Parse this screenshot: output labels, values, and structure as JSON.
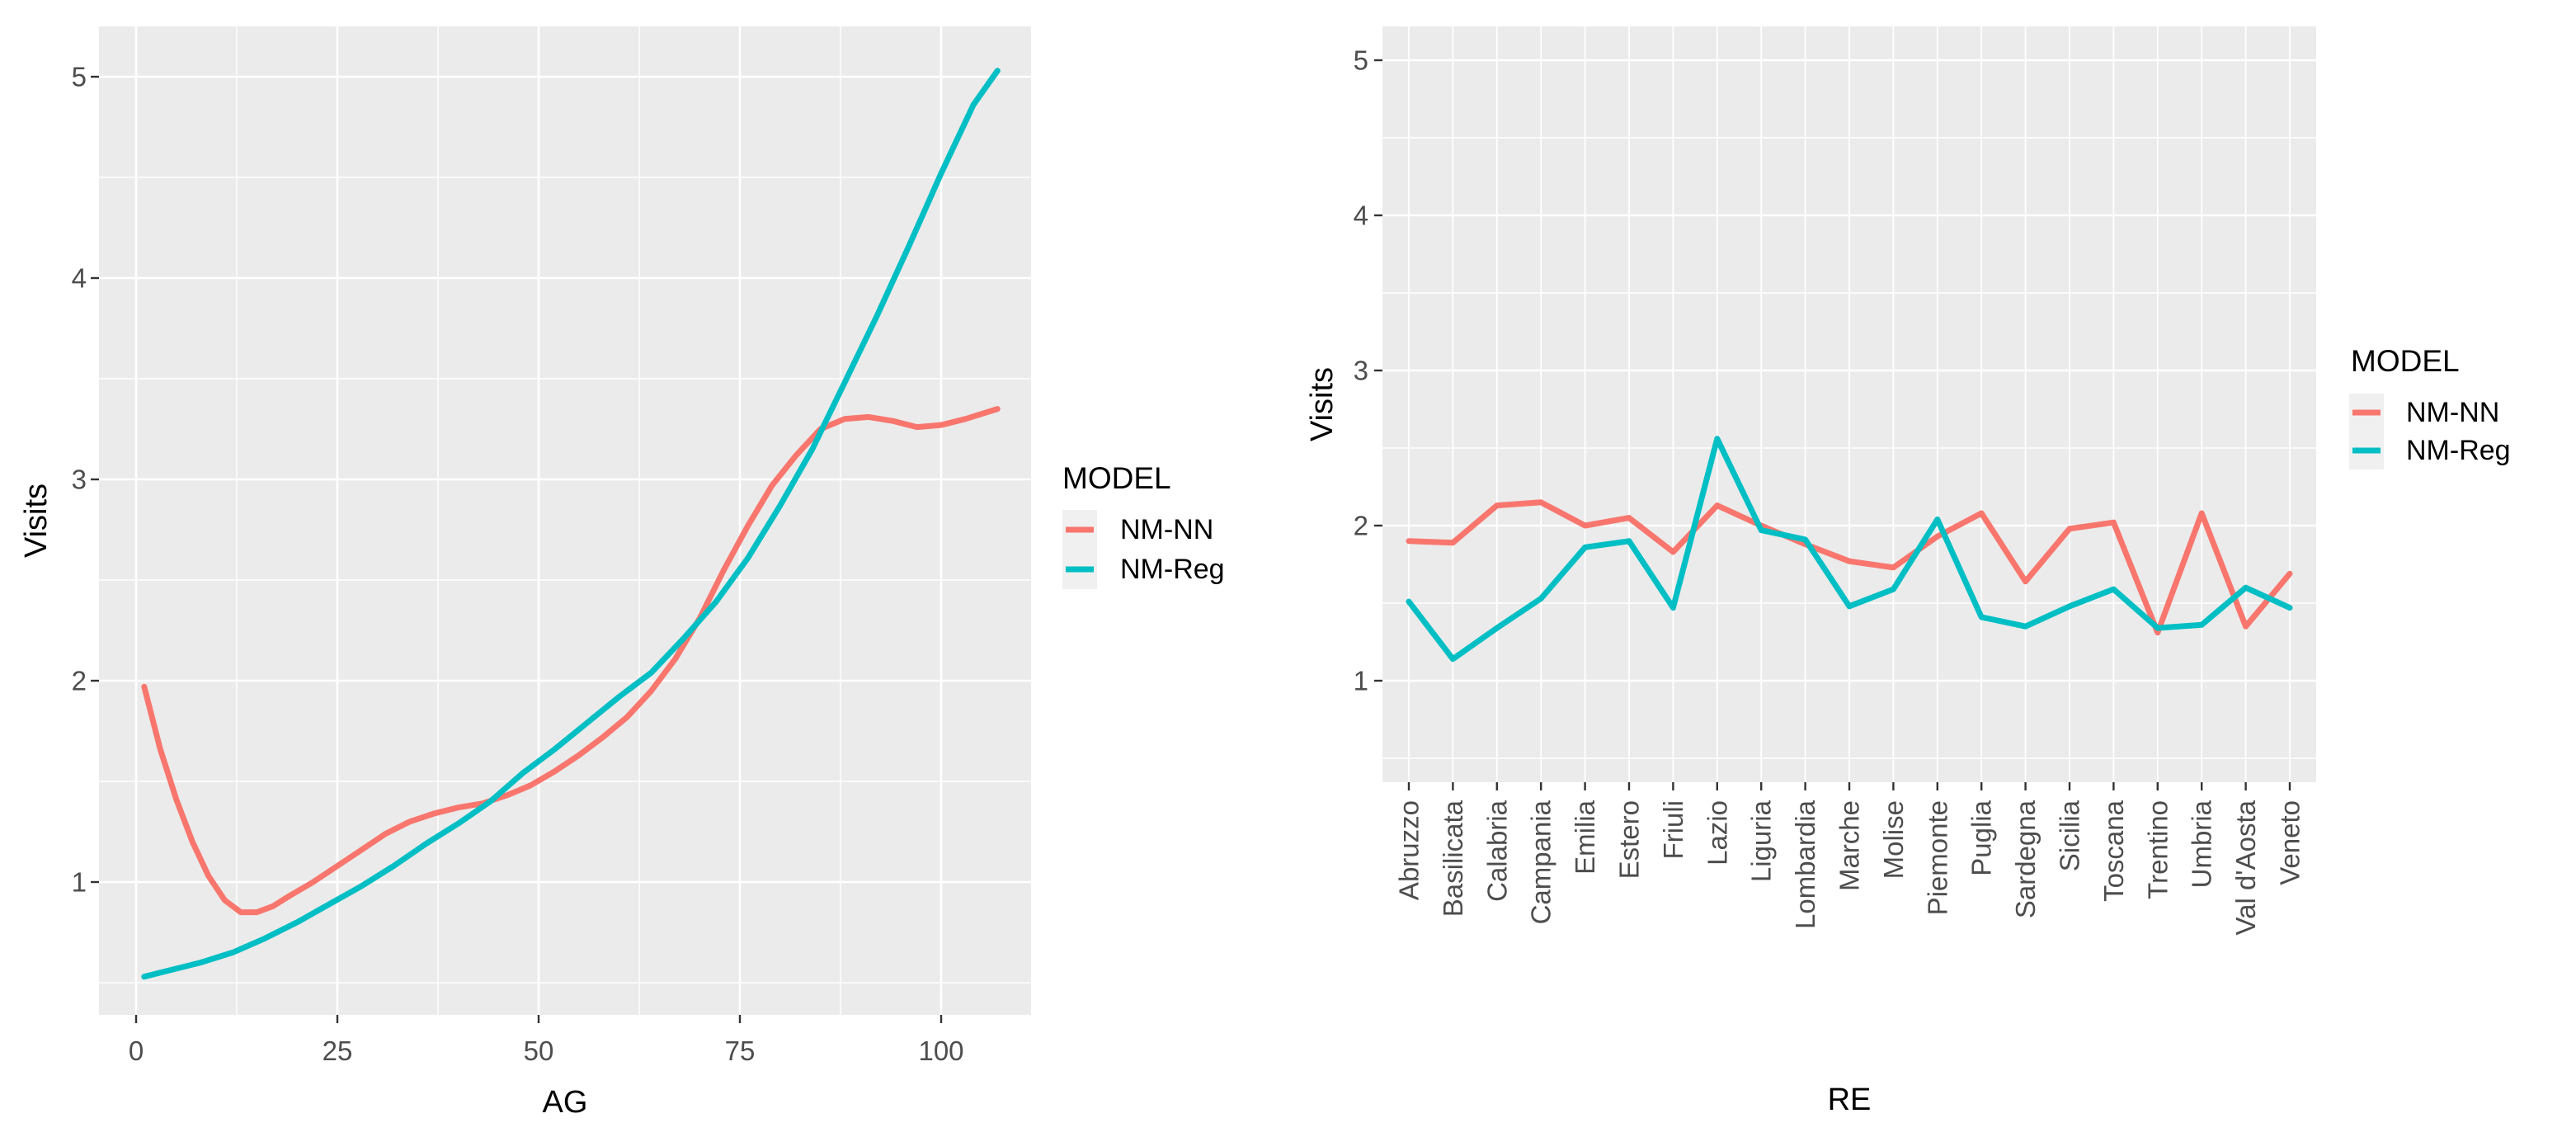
{
  "figure": {
    "background": "#FFFFFF"
  },
  "theme": {
    "panel_bg": "#EBEBEB",
    "grid_color": "#FFFFFF",
    "axis_text_color": "#4D4D4D",
    "axis_title_color": "#000000",
    "tick_mark_color": "#333333",
    "legend_key_bg": "#F0F0F0",
    "nm_nn_color": "#F8766D",
    "nm_reg_color": "#00BFC4"
  },
  "chart_data": [
    {
      "id": "visits-by-age",
      "type": "line",
      "title": "",
      "xlabel": "AG",
      "ylabel": "Visits",
      "x_ticks": [
        0,
        25,
        50,
        75,
        100
      ],
      "x_minor_ticks": [
        12.5,
        37.5,
        62.5,
        87.5
      ],
      "y_ticks": [
        1,
        2,
        3,
        4,
        5
      ],
      "y_minor_ticks": [
        0.5,
        1.5,
        2.5,
        3.5,
        4.5
      ],
      "xlim": [
        -4.6,
        111.2
      ],
      "ylim": [
        0.34,
        5.25
      ],
      "grid": true,
      "legend_title": "MODEL",
      "legend_position": "right",
      "series": [
        {
          "name": "NM-NN",
          "color": "#F8766D",
          "points": [
            [
              1,
              1.97
            ],
            [
              3,
              1.66
            ],
            [
              5,
              1.41
            ],
            [
              7,
              1.2
            ],
            [
              9,
              1.03
            ],
            [
              11,
              0.91
            ],
            [
              13,
              0.85
            ],
            [
              15,
              0.85
            ],
            [
              17,
              0.88
            ],
            [
              19,
              0.93
            ],
            [
              22,
              1.0
            ],
            [
              25,
              1.08
            ],
            [
              28,
              1.16
            ],
            [
              31,
              1.24
            ],
            [
              34,
              1.3
            ],
            [
              37,
              1.34
            ],
            [
              40,
              1.37
            ],
            [
              43,
              1.39
            ],
            [
              46,
              1.43
            ],
            [
              49,
              1.48
            ],
            [
              52,
              1.55
            ],
            [
              55,
              1.63
            ],
            [
              58,
              1.72
            ],
            [
              61,
              1.82
            ],
            [
              64,
              1.95
            ],
            [
              67,
              2.11
            ],
            [
              70,
              2.31
            ],
            [
              73,
              2.55
            ],
            [
              76,
              2.77
            ],
            [
              79,
              2.97
            ],
            [
              82,
              3.12
            ],
            [
              85,
              3.25
            ],
            [
              88,
              3.3
            ],
            [
              91,
              3.31
            ],
            [
              94,
              3.29
            ],
            [
              97,
              3.26
            ],
            [
              100,
              3.27
            ],
            [
              103,
              3.3
            ],
            [
              107,
              3.35
            ]
          ]
        },
        {
          "name": "NM-Reg",
          "color": "#00BFC4",
          "points": [
            [
              1,
              0.53
            ],
            [
              4,
              0.56
            ],
            [
              8,
              0.6
            ],
            [
              12,
              0.65
            ],
            [
              16,
              0.72
            ],
            [
              20,
              0.8
            ],
            [
              24,
              0.89
            ],
            [
              28,
              0.98
            ],
            [
              32,
              1.08
            ],
            [
              36,
              1.19
            ],
            [
              40,
              1.29
            ],
            [
              44,
              1.4
            ],
            [
              48,
              1.54
            ],
            [
              52,
              1.66
            ],
            [
              56,
              1.79
            ],
            [
              60,
              1.92
            ],
            [
              64,
              2.04
            ],
            [
              68,
              2.21
            ],
            [
              72,
              2.39
            ],
            [
              76,
              2.61
            ],
            [
              80,
              2.87
            ],
            [
              84,
              3.15
            ],
            [
              88,
              3.48
            ],
            [
              92,
              3.81
            ],
            [
              96,
              4.16
            ],
            [
              100,
              4.52
            ],
            [
              104,
              4.86
            ],
            [
              107,
              5.03
            ]
          ]
        }
      ]
    },
    {
      "id": "visits-by-region",
      "type": "line",
      "title": "",
      "xlabel": "RE",
      "ylabel": "Visits",
      "categories": [
        "Abruzzo",
        "Basilicata",
        "Calabria",
        "Campania",
        "Emilia",
        "Estero",
        "Friuli",
        "Lazio",
        "Liguria",
        "Lombardia",
        "Marche",
        "Molise",
        "Piemonte",
        "Puglia",
        "Sardegna",
        "Sicilia",
        "Toscana",
        "Trentino",
        "Umbria",
        "Val d'Aosta",
        "Veneto"
      ],
      "y_ticks": [
        1,
        2,
        3,
        4,
        5
      ],
      "y_minor_ticks": [
        0.5,
        1.5,
        2.5,
        3.5,
        4.5
      ],
      "ylim": [
        0.35,
        5.22
      ],
      "grid": true,
      "legend_title": "MODEL",
      "legend_position": "right",
      "series": [
        {
          "name": "NM-NN",
          "color": "#F8766D",
          "values": [
            1.9,
            1.89,
            2.13,
            2.15,
            2.0,
            2.05,
            1.83,
            2.13,
            2.0,
            1.88,
            1.77,
            1.73,
            1.93,
            2.08,
            1.64,
            1.98,
            2.02,
            1.31,
            2.08,
            1.35,
            1.69
          ]
        },
        {
          "name": "NM-Reg",
          "color": "#00BFC4",
          "values": [
            1.51,
            1.14,
            1.34,
            1.53,
            1.86,
            1.9,
            1.47,
            2.56,
            1.97,
            1.91,
            1.48,
            1.59,
            2.04,
            1.41,
            1.35,
            1.48,
            1.59,
            1.34,
            1.36,
            1.6,
            1.47
          ]
        }
      ]
    }
  ]
}
